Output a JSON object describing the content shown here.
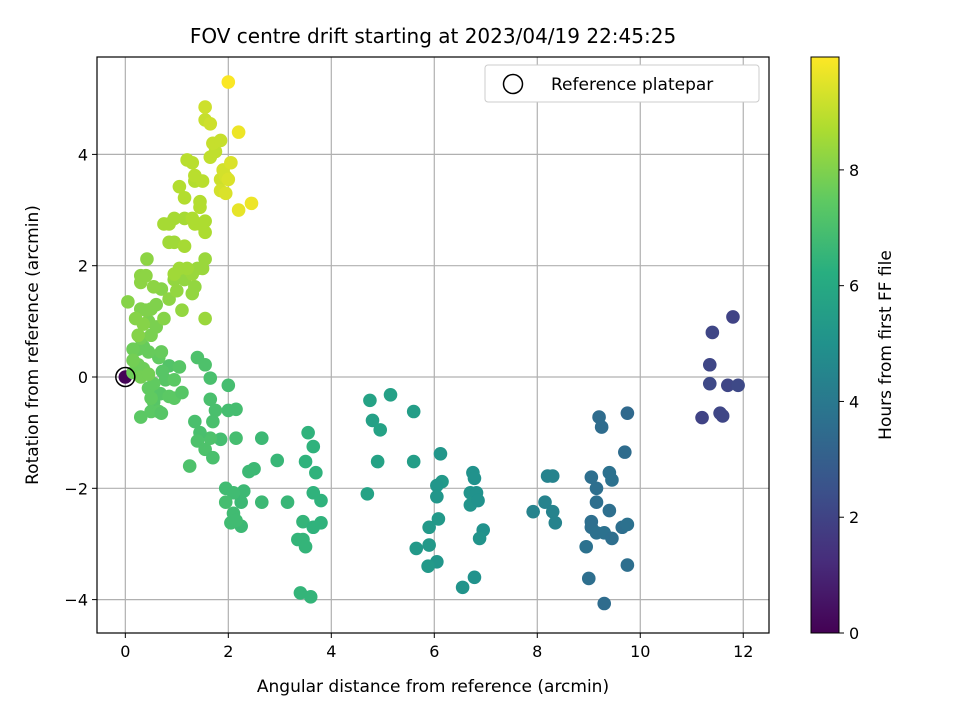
{
  "chart_data": {
    "type": "scatter",
    "title": "FOV centre drift starting at 2023/04/19 22:45:25",
    "xlabel": "Angular distance from reference (arcmin)",
    "ylabel": "Rotation from reference (arcmin)",
    "xlim": [
      -0.55,
      12.5
    ],
    "ylim": [
      -4.6,
      5.75
    ],
    "xticks": [
      0,
      2,
      4,
      6,
      8,
      10,
      12
    ],
    "yticks": [
      -4,
      -2,
      0,
      2,
      4
    ],
    "grid": true,
    "legend": {
      "position": "top-right",
      "entries": [
        "Reference platepar"
      ]
    },
    "reference_point": {
      "x": 0,
      "y": 0,
      "label": "Reference platepar"
    },
    "colorbar": {
      "label": "Hours from first FF file",
      "colormap": "viridis",
      "min": 0,
      "max": 9.95,
      "ticks": [
        0,
        2,
        4,
        6,
        8
      ]
    },
    "point_fields": [
      "x",
      "y",
      "hours"
    ],
    "points": [
      [
        0,
        0,
        0.1
      ],
      [
        11.2,
        -0.73,
        2.0
      ],
      [
        11.35,
        0.22,
        2.1
      ],
      [
        11.4,
        0.8,
        2.1
      ],
      [
        11.8,
        1.08,
        2.0
      ],
      [
        11.35,
        -0.12,
        2.2
      ],
      [
        11.55,
        -0.65,
        2.1
      ],
      [
        11.6,
        -0.7,
        2.1
      ],
      [
        11.7,
        -0.15,
        2.1
      ],
      [
        11.9,
        -0.15,
        2.2
      ],
      [
        9.2,
        -0.72,
        3.5
      ],
      [
        9.25,
        -0.9,
        3.5
      ],
      [
        9.75,
        -0.65,
        3.4
      ],
      [
        9.7,
        -1.35,
        3.5
      ],
      [
        9.05,
        -1.8,
        3.6
      ],
      [
        9.15,
        -2.0,
        3.6
      ],
      [
        9.4,
        -1.72,
        3.7
      ],
      [
        9.45,
        -1.85,
        3.7
      ],
      [
        9.15,
        -2.25,
        3.6
      ],
      [
        9.05,
        -2.6,
        3.6
      ],
      [
        9.05,
        -2.7,
        3.6
      ],
      [
        9.15,
        -2.8,
        3.7
      ],
      [
        9.3,
        -2.8,
        3.7
      ],
      [
        9.4,
        -2.4,
        3.6
      ],
      [
        9.45,
        -2.9,
        3.6
      ],
      [
        9.65,
        -2.7,
        3.6
      ],
      [
        9.75,
        -2.65,
        3.7
      ],
      [
        8.95,
        -3.05,
        3.7
      ],
      [
        9.75,
        -3.38,
        3.6
      ],
      [
        9.0,
        -3.62,
        3.6
      ],
      [
        9.3,
        -4.07,
        3.5
      ],
      [
        7.92,
        -2.42,
        4.4
      ],
      [
        8.15,
        -2.25,
        4.4
      ],
      [
        8.2,
        -1.78,
        4.4
      ],
      [
        8.3,
        -1.78,
        4.4
      ],
      [
        8.3,
        -2.42,
        4.4
      ],
      [
        8.35,
        -2.62,
        4.4
      ],
      [
        6.75,
        -1.72,
        5.0
      ],
      [
        6.78,
        -1.82,
        5.0
      ],
      [
        6.7,
        -2.08,
        5.1
      ],
      [
        6.82,
        -2.08,
        5.0
      ],
      [
        6.7,
        -2.3,
        5.1
      ],
      [
        6.85,
        -2.22,
        5.0
      ],
      [
        6.95,
        -2.75,
        5.0
      ],
      [
        6.88,
        -2.9,
        5.1
      ],
      [
        6.78,
        -3.6,
        5.0
      ],
      [
        6.55,
        -3.78,
        5.1
      ],
      [
        6.12,
        -1.38,
        5.2
      ],
      [
        6.15,
        -1.88,
        5.3
      ],
      [
        6.05,
        -1.95,
        5.2
      ],
      [
        6.05,
        -2.15,
        5.2
      ],
      [
        6.08,
        -2.55,
        5.3
      ],
      [
        5.9,
        -2.7,
        5.3
      ],
      [
        5.9,
        -3.02,
        5.3
      ],
      [
        5.65,
        -3.08,
        5.3
      ],
      [
        6.05,
        -3.32,
        5.2
      ],
      [
        5.88,
        -3.4,
        5.3
      ],
      [
        5.6,
        -0.62,
        5.5
      ],
      [
        5.6,
        -1.52,
        5.5
      ],
      [
        5.15,
        -0.32,
        5.6
      ],
      [
        4.75,
        -0.42,
        5.7
      ],
      [
        4.8,
        -0.78,
        5.6
      ],
      [
        4.95,
        -0.95,
        5.7
      ],
      [
        4.9,
        -1.52,
        5.7
      ],
      [
        4.7,
        -2.1,
        5.7
      ],
      [
        3.55,
        -1.0,
        6.4
      ],
      [
        3.65,
        -1.25,
        6.4
      ],
      [
        3.5,
        -1.52,
        6.4
      ],
      [
        3.7,
        -1.72,
        6.4
      ],
      [
        3.65,
        -2.08,
        6.4
      ],
      [
        3.8,
        -2.22,
        6.4
      ],
      [
        3.45,
        -2.6,
        6.5
      ],
      [
        3.65,
        -2.7,
        6.4
      ],
      [
        3.8,
        -2.62,
        6.4
      ],
      [
        3.35,
        -2.92,
        6.5
      ],
      [
        3.45,
        -2.92,
        6.5
      ],
      [
        3.5,
        -3.05,
        6.5
      ],
      [
        3.4,
        -3.88,
        6.5
      ],
      [
        3.6,
        -3.95,
        6.5
      ],
      [
        2.95,
        -1.5,
        6.6
      ],
      [
        3.15,
        -2.25,
        6.6
      ],
      [
        2.65,
        -1.1,
        6.7
      ],
      [
        2.5,
        -1.65,
        6.7
      ],
      [
        2.4,
        -1.7,
        6.7
      ],
      [
        2.3,
        -2.05,
        6.7
      ],
      [
        2.25,
        -2.25,
        6.7
      ],
      [
        2.65,
        -2.25,
        6.7
      ],
      [
        2.25,
        -2.68,
        6.7
      ],
      [
        2.1,
        -2.45,
        6.8
      ],
      [
        2.05,
        -2.62,
        6.8
      ],
      [
        2.15,
        -2.58,
        6.8
      ],
      [
        1.95,
        -2.0,
        6.8
      ],
      [
        2.1,
        -2.08,
        6.8
      ],
      [
        1.95,
        -2.25,
        6.9
      ],
      [
        2.15,
        -0.58,
        6.9
      ],
      [
        2.0,
        -0.6,
        6.9
      ],
      [
        2.0,
        -0.15,
        6.9
      ],
      [
        2.15,
        -1.1,
        6.9
      ],
      [
        1.85,
        -1.12,
        6.9
      ],
      [
        1.75,
        -0.6,
        7.0
      ],
      [
        1.65,
        -0.4,
        7.0
      ],
      [
        1.65,
        -0.02,
        7.0
      ],
      [
        1.55,
        0.22,
        7.1
      ],
      [
        1.4,
        0.35,
        7.1
      ],
      [
        1.7,
        -0.8,
        7.0
      ],
      [
        1.65,
        -1.1,
        7.1
      ],
      [
        1.45,
        -1.0,
        7.0
      ],
      [
        1.35,
        -0.8,
        7.0
      ],
      [
        1.4,
        -1.15,
        7.1
      ],
      [
        1.55,
        -1.3,
        7.1
      ],
      [
        1.7,
        -1.45,
        7.0
      ],
      [
        1.25,
        -1.6,
        7.1
      ],
      [
        0.85,
        0.2,
        7.2
      ],
      [
        1.05,
        0.18,
        7.3
      ],
      [
        0.72,
        0.1,
        7.3
      ],
      [
        0.78,
        -0.05,
        7.3
      ],
      [
        0.95,
        -0.05,
        7.4
      ],
      [
        0.68,
        -0.3,
        7.3
      ],
      [
        0.85,
        -0.35,
        7.4
      ],
      [
        0.95,
        -0.38,
        7.4
      ],
      [
        1.1,
        -0.28,
        7.3
      ],
      [
        0.55,
        -0.45,
        7.3
      ],
      [
        0.5,
        -0.62,
        7.4
      ],
      [
        0.65,
        -0.62,
        7.4
      ],
      [
        0.7,
        -0.65,
        7.3
      ],
      [
        0.3,
        -0.72,
        7.4
      ],
      [
        0.5,
        -0.38,
        7.5
      ],
      [
        0.45,
        -0.2,
        7.5
      ],
      [
        0.55,
        -0.12,
        7.5
      ],
      [
        0.65,
        0.35,
        7.5
      ],
      [
        0.7,
        0.45,
        7.6
      ],
      [
        0.45,
        0.45,
        7.6
      ],
      [
        0.35,
        0.55,
        7.6
      ],
      [
        0.25,
        0.5,
        7.6
      ],
      [
        0.15,
        0.5,
        7.7
      ],
      [
        0.25,
        0.22,
        7.7
      ],
      [
        0.35,
        0.15,
        7.7
      ],
      [
        0.15,
        0.08,
        7.7
      ],
      [
        0.3,
        0.0,
        7.8
      ],
      [
        0.45,
        0.05,
        7.8
      ],
      [
        0.15,
        0.3,
        7.8
      ],
      [
        0.3,
        0.7,
        7.8
      ],
      [
        0.5,
        0.75,
        7.9
      ],
      [
        0.6,
        0.9,
        7.9
      ],
      [
        0.45,
        1.0,
        7.9
      ],
      [
        0.4,
        1.2,
        8.0
      ],
      [
        0.3,
        1.22,
        8.0
      ],
      [
        0.5,
        1.22,
        8.0
      ],
      [
        0.6,
        1.3,
        8.0
      ],
      [
        0.05,
        1.35,
        8.1
      ],
      [
        0.2,
        1.05,
        8.1
      ],
      [
        0.35,
        0.95,
        8.1
      ],
      [
        0.25,
        0.75,
        8.1
      ],
      [
        0.7,
        1.58,
        8.1
      ],
      [
        0.75,
        1.05,
        8.1
      ],
      [
        0.85,
        1.4,
        8.2
      ],
      [
        0.3,
        1.7,
        8.2
      ],
      [
        0.3,
        1.82,
        8.2
      ],
      [
        0.4,
        1.82,
        8.2
      ],
      [
        0.42,
        2.12,
        8.2
      ],
      [
        0.55,
        1.62,
        8.2
      ],
      [
        0.95,
        1.75,
        8.3
      ],
      [
        1.1,
        1.2,
        8.3
      ],
      [
        1.0,
        1.55,
        8.3
      ],
      [
        1.15,
        1.75,
        8.3
      ],
      [
        1.3,
        1.5,
        8.3
      ],
      [
        1.35,
        1.62,
        8.3
      ],
      [
        1.5,
        1.95,
        8.4
      ],
      [
        1.55,
        2.12,
        8.4
      ],
      [
        1.4,
        1.95,
        8.4
      ],
      [
        1.3,
        1.85,
        8.4
      ],
      [
        1.2,
        1.95,
        8.5
      ],
      [
        1.05,
        1.95,
        8.5
      ],
      [
        0.95,
        1.85,
        8.5
      ],
      [
        1.55,
        1.05,
        8.4
      ],
      [
        0.85,
        2.42,
        8.5
      ],
      [
        0.95,
        2.42,
        8.5
      ],
      [
        1.15,
        2.35,
        8.6
      ],
      [
        0.85,
        2.75,
        8.6
      ],
      [
        0.75,
        2.75,
        8.6
      ],
      [
        0.95,
        2.85,
        8.6
      ],
      [
        1.15,
        2.85,
        8.6
      ],
      [
        1.35,
        2.75,
        8.7
      ],
      [
        1.45,
        2.75,
        8.7
      ],
      [
        1.55,
        2.6,
        8.7
      ],
      [
        1.55,
        2.8,
        8.7
      ],
      [
        1.3,
        2.85,
        8.7
      ],
      [
        1.45,
        3.05,
        8.8
      ],
      [
        1.45,
        3.15,
        8.8
      ],
      [
        1.15,
        3.22,
        8.8
      ],
      [
        1.05,
        3.42,
        8.8
      ],
      [
        1.35,
        3.52,
        8.8
      ],
      [
        1.5,
        3.52,
        8.9
      ],
      [
        1.35,
        3.62,
        8.9
      ],
      [
        1.2,
        3.9,
        8.9
      ],
      [
        1.3,
        3.85,
        8.9
      ],
      [
        1.65,
        3.95,
        9.0
      ],
      [
        1.75,
        4.05,
        9.0
      ],
      [
        1.7,
        4.2,
        9.1
      ],
      [
        1.85,
        4.25,
        9.1
      ],
      [
        1.55,
        4.62,
        9.1
      ],
      [
        1.65,
        4.55,
        9.2
      ],
      [
        1.55,
        4.85,
        9.2
      ],
      [
        1.85,
        3.55,
        9.2
      ],
      [
        1.95,
        3.6,
        9.3
      ],
      [
        1.9,
        3.72,
        9.3
      ],
      [
        2.0,
        3.55,
        9.4
      ],
      [
        2.05,
        3.85,
        9.4
      ],
      [
        1.85,
        3.35,
        9.3
      ],
      [
        1.95,
        3.3,
        9.4
      ],
      [
        2.2,
        3.0,
        9.6
      ],
      [
        2.45,
        3.12,
        9.7
      ],
      [
        2.2,
        4.4,
        9.7
      ],
      [
        2.0,
        5.3,
        9.9
      ]
    ]
  }
}
